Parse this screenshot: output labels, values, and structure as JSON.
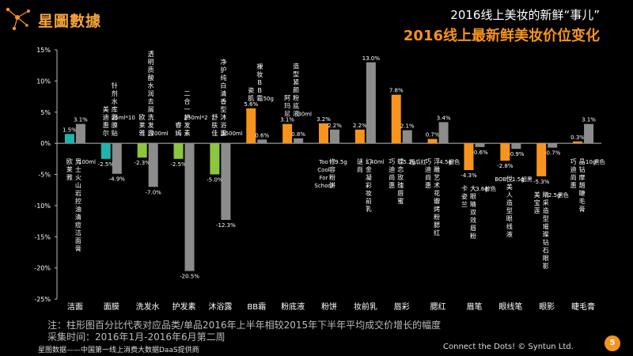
{
  "brand": {
    "logo_text": "星圖數據"
  },
  "title": {
    "line1": "2016线上美妆的新鲜“事儿”",
    "line2": "2016线上最新鲜美妆价位变化"
  },
  "note": {
    "line1": "注：柱形图百分比代表对应品类/单品2016年上半年相较2015年下半年平均成交价增长的幅度",
    "line2": "采集时间：2016年1月-2016年6月第二周"
  },
  "footer": {
    "left": "星图数据——中国第一线上消费大数据DaaS提供商",
    "right": "Connect the Dots!  © Syntun Ltd.",
    "page": "5"
  },
  "colors": {
    "洁面": "#1fb5ad",
    "面膜": "#1fb5ad",
    "洗发水": "#8cc63f",
    "护发素": "#8cc63f",
    "沐浴露": "#8cc63f",
    "makeup": "#f7941d",
    "item": "#8c8c8c"
  },
  "chart_data": {
    "type": "bar",
    "ylim": [
      -25,
      15
    ],
    "yticks": [
      "-25%",
      "-20%",
      "-15%",
      "-10%",
      "-5%",
      "0%",
      "5%",
      "10%",
      "15%"
    ],
    "categories": [
      "洁面",
      "面膜",
      "洗发水",
      "护发素",
      "沐浴露",
      "BB霜",
      "粉底液",
      "粉饼",
      "妆前乳",
      "唇彩",
      "腮红",
      "眉笔",
      "眼线笔",
      "眼影",
      "睫毛膏"
    ],
    "series": [
      {
        "values": [
          1.5,
          -2.5,
          -2.3,
          -2.5,
          -5.0,
          5.6,
          3.1,
          3.2,
          2.2,
          7.8,
          0.7,
          -4.3,
          -2.8,
          -5.3,
          0.3
        ],
        "labels": [
          "1.5%",
          "-2.5%",
          "-2.3%",
          "-2.5%",
          "-5.0%",
          "5.6%",
          "3.1%",
          "3.2%",
          "2.2%",
          "7.8%",
          "0.7%",
          "-4.3%",
          "-2.8%",
          "-5.3%",
          "0.3%"
        ]
      },
      {
        "values": [
          3.1,
          -4.9,
          -7.0,
          -20.5,
          -12.3,
          0.6,
          0.8,
          2.2,
          13.0,
          2.1,
          3.4,
          -0.6,
          -0.9,
          -0.7,
          3.1
        ],
        "labels": [
          "3.1%",
          "-4.9%",
          "-7.0%",
          "-20.5%",
          "-12.3%",
          "0.6%",
          "0.8%",
          "2.2%",
          "13.0%",
          "2.1%",
          "3.4%",
          "-0.6%",
          "-0.9%",
          "-0.7%",
          "3.1%"
        ]
      }
    ],
    "annotations": [
      {
        "cat": "洁面",
        "pos": "below",
        "cols": [
          {
            "text": "欧莱雅",
            "v": true
          },
          {
            "text": "男士火山岩控油清痘洁面膏",
            "v": true
          },
          {
            "text": "100ml",
            "v": false
          }
        ]
      },
      {
        "cat": "面膜",
        "pos": "above",
        "cols": [
          {
            "text": "美迪惠尔",
            "v": true
          },
          {
            "text": "针剂水库面膜贴",
            "v": true
          },
          {
            "text": "25ml*10",
            "v": false
          }
        ]
      },
      {
        "cat": "洗发水",
        "pos": "above",
        "cols": [
          {
            "text": "欧莱雅",
            "v": true
          },
          {
            "text": "透明质酸水润去屑洗发露",
            "v": true
          },
          {
            "text": "700ml",
            "v": false
          }
        ]
      },
      {
        "cat": "护发素",
        "pos": "above",
        "cols": [
          {
            "text": "睿嫣",
            "v": true
          },
          {
            "text": "二合一护发素",
            "v": true
          },
          {
            "text": "250ml*2",
            "v": false
          }
        ]
      },
      {
        "cat": "沐浴露",
        "pos": "above",
        "cols": [
          {
            "text": "舒肤佳",
            "v": true
          },
          {
            "text": "净护纯白清香型沐浴露",
            "v": true
          },
          {
            "text": "1500ml",
            "v": false
          }
        ]
      },
      {
        "cat": "BB霜",
        "pos": "above",
        "cols": [
          {
            "text": "瓷肌",
            "v": true
          },
          {
            "text": "裸妆BB霜",
            "v": true
          },
          {
            "text": "50g",
            "v": false
          }
        ]
      },
      {
        "cat": "粉底液",
        "pos": "above",
        "cols": [
          {
            "text": "阿玛尼",
            "v": true
          },
          {
            "text": "造型紧颜粉底液",
            "v": true
          },
          {
            "text": "30ml",
            "v": false
          }
        ]
      },
      {
        "cat": "粉饼",
        "pos": "below",
        "cols": [
          {
            "text": "Too Cool For School",
            "v": false
          },
          {
            "text": "修容粉饼",
            "v": true
          },
          {
            "text": "9.5g",
            "v": false
          }
        ]
      },
      {
        "cat": "妆前乳",
        "pos": "below",
        "cols": [
          {
            "text": "谜尚",
            "v": true
          },
          {
            "text": "幻金凝彩妆前乳",
            "v": true
          },
          {
            "text": "40ml",
            "v": false
          }
        ]
      },
      {
        "cat": "唇彩",
        "pos": "below",
        "cols": [
          {
            "text": "巧迪尚惠",
            "v": true
          },
          {
            "text": "蝶恋玫瑰唇蜜",
            "v": true
          },
          {
            "text": "5.2g",
            "v": false
          },
          {
            "text": "西瓜红",
            "v": false
          }
        ]
      },
      {
        "cat": "腮红",
        "pos": "below",
        "cols": [
          {
            "text": "巧迪尚惠",
            "v": true
          },
          {
            "text": "浮雕艺术花瓣烤粉腮红",
            "v": true
          },
          {
            "text": "4.5g",
            "v": false
          },
          {
            "text": "橙色",
            "v": false
          }
        ]
      },
      {
        "cat": "眉笔",
        "pos": "below",
        "cols": [
          {
            "text": "卡姿兰",
            "v": true
          },
          {
            "text": "大眼睛双效眉粉",
            "v": true
          },
          {
            "text": "3.6g",
            "v": false
          },
          {
            "text": "棕色",
            "v": false
          }
        ]
      },
      {
        "cat": "眼线笔",
        "pos": "below",
        "cols": [
          {
            "text": "BOB",
            "v": false
          },
          {
            "text": "悦美人造型眼线液",
            "v": true
          },
          {
            "text": "1.5g",
            "v": false
          },
          {
            "text": "超黑",
            "v": false
          }
        ]
      },
      {
        "cat": "眼影",
        "pos": "below",
        "cols": [
          {
            "text": "美宝莲",
            "v": true
          },
          {
            "text": "睛采造型璀璨钻石眼影",
            "v": true
          },
          {
            "text": "2.5g",
            "v": false
          },
          {
            "text": "黑色",
            "v": false
          }
        ]
      },
      {
        "cat": "睫毛膏",
        "pos": "below",
        "cols": [
          {
            "text": "巧迪尚惠",
            "v": true
          },
          {
            "text": "晶钻摩翘睫毛膏",
            "v": true
          },
          {
            "text": "10g",
            "v": false
          },
          {
            "text": "黑色",
            "v": false
          }
        ]
      }
    ]
  }
}
